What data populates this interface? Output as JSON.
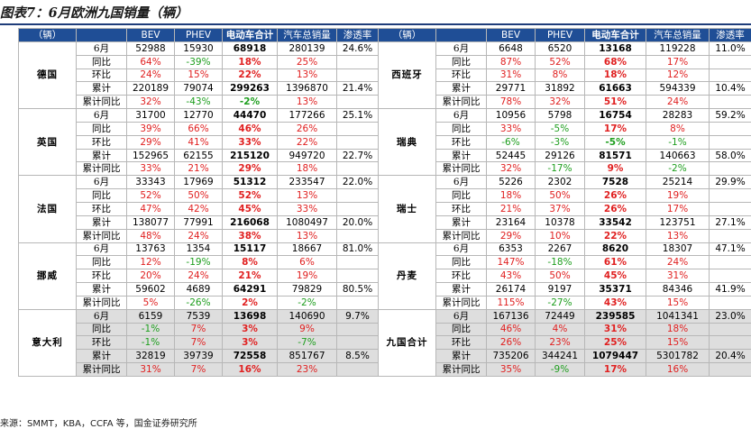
{
  "title": "图表7：6月欧洲九国销量（辆）",
  "source": "来源：SMMT，KBA，CCFA 等，国金证券研究所",
  "headers": [
    "（辆）",
    "",
    "BEV",
    "PHEV",
    "电动车合计",
    "汽车总销量",
    "渗透率"
  ],
  "colors": {
    "header_bg": "#1f4e96",
    "negative": "#e02020",
    "positive": "#1e9e1e",
    "alt_row": "#dedede"
  },
  "left": [
    {
      "name": "德国",
      "rows": [
        {
          "metric": "6月",
          "bev": "52988",
          "phev": "15930",
          "ev": "68918",
          "total": "280139",
          "pen": "24.6%"
        },
        {
          "metric": "同比",
          "bev": "64%",
          "phev": "-39%",
          "ev": "18%",
          "total": "25%",
          "pen": ""
        },
        {
          "metric": "环比",
          "bev": "24%",
          "phev": "15%",
          "ev": "22%",
          "total": "13%",
          "pen": ""
        },
        {
          "metric": "累计",
          "bev": "220189",
          "phev": "79074",
          "ev": "299263",
          "total": "1396870",
          "pen": "21.4%"
        },
        {
          "metric": "累计同比",
          "bev": "32%",
          "phev": "-43%",
          "ev": "-2%",
          "total": "13%",
          "pen": ""
        }
      ]
    },
    {
      "name": "英国",
      "rows": [
        {
          "metric": "6月",
          "bev": "31700",
          "phev": "12770",
          "ev": "44470",
          "total": "177266",
          "pen": "25.1%"
        },
        {
          "metric": "同比",
          "bev": "39%",
          "phev": "66%",
          "ev": "46%",
          "total": "26%",
          "pen": ""
        },
        {
          "metric": "环比",
          "bev": "29%",
          "phev": "41%",
          "ev": "33%",
          "total": "22%",
          "pen": ""
        },
        {
          "metric": "累计",
          "bev": "152965",
          "phev": "62155",
          "ev": "215120",
          "total": "949720",
          "pen": "22.7%"
        },
        {
          "metric": "累计同比",
          "bev": "33%",
          "phev": "21%",
          "ev": "29%",
          "total": "18%",
          "pen": ""
        }
      ]
    },
    {
      "name": "法国",
      "rows": [
        {
          "metric": "6月",
          "bev": "33343",
          "phev": "17969",
          "ev": "51312",
          "total": "233547",
          "pen": "22.0%"
        },
        {
          "metric": "同比",
          "bev": "52%",
          "phev": "50%",
          "ev": "52%",
          "total": "13%",
          "pen": ""
        },
        {
          "metric": "环比",
          "bev": "47%",
          "phev": "42%",
          "ev": "45%",
          "total": "33%",
          "pen": ""
        },
        {
          "metric": "累计",
          "bev": "138077",
          "phev": "77991",
          "ev": "216068",
          "total": "1080497",
          "pen": "20.0%"
        },
        {
          "metric": "累计同比",
          "bev": "48%",
          "phev": "24%",
          "ev": "38%",
          "total": "13%",
          "pen": ""
        }
      ]
    },
    {
      "name": "挪威",
      "rows": [
        {
          "metric": "6月",
          "bev": "13763",
          "phev": "1354",
          "ev": "15117",
          "total": "18667",
          "pen": "81.0%"
        },
        {
          "metric": "同比",
          "bev": "12%",
          "phev": "-19%",
          "ev": "8%",
          "total": "6%",
          "pen": ""
        },
        {
          "metric": "环比",
          "bev": "20%",
          "phev": "24%",
          "ev": "21%",
          "total": "19%",
          "pen": ""
        },
        {
          "metric": "累计",
          "bev": "59602",
          "phev": "4689",
          "ev": "64291",
          "total": "79829",
          "pen": "80.5%"
        },
        {
          "metric": "累计同比",
          "bev": "5%",
          "phev": "-26%",
          "ev": "2%",
          "total": "-2%",
          "pen": ""
        }
      ]
    },
    {
      "name": "意大利",
      "rows": [
        {
          "metric": "6月",
          "bev": "6159",
          "phev": "7539",
          "ev": "13698",
          "total": "140690",
          "pen": "9.7%"
        },
        {
          "metric": "同比",
          "bev": "-1%",
          "phev": "7%",
          "ev": "3%",
          "total": "9%",
          "pen": ""
        },
        {
          "metric": "环比",
          "bev": "-1%",
          "phev": "7%",
          "ev": "3%",
          "total": "-7%",
          "pen": ""
        },
        {
          "metric": "累计",
          "bev": "32819",
          "phev": "39739",
          "ev": "72558",
          "total": "851767",
          "pen": "8.5%"
        },
        {
          "metric": "累计同比",
          "bev": "31%",
          "phev": "7%",
          "ev": "16%",
          "total": "23%",
          "pen": ""
        }
      ]
    }
  ],
  "right": [
    {
      "name": "西班牙",
      "rows": [
        {
          "metric": "6月",
          "bev": "6648",
          "phev": "6520",
          "ev": "13168",
          "total": "119228",
          "pen": "11.0%"
        },
        {
          "metric": "同比",
          "bev": "87%",
          "phev": "52%",
          "ev": "68%",
          "total": "17%",
          "pen": ""
        },
        {
          "metric": "环比",
          "bev": "31%",
          "phev": "8%",
          "ev": "18%",
          "total": "12%",
          "pen": ""
        },
        {
          "metric": "累计",
          "bev": "29771",
          "phev": "31892",
          "ev": "61663",
          "total": "594339",
          "pen": "10.4%"
        },
        {
          "metric": "累计同比",
          "bev": "78%",
          "phev": "32%",
          "ev": "51%",
          "total": "24%",
          "pen": ""
        }
      ]
    },
    {
      "name": "瑞典",
      "rows": [
        {
          "metric": "6月",
          "bev": "10956",
          "phev": "5798",
          "ev": "16754",
          "total": "28283",
          "pen": "59.2%"
        },
        {
          "metric": "同比",
          "bev": "33%",
          "phev": "-5%",
          "ev": "17%",
          "total": "8%",
          "pen": ""
        },
        {
          "metric": "环比",
          "bev": "-6%",
          "phev": "-3%",
          "ev": "-5%",
          "total": "-1%",
          "pen": ""
        },
        {
          "metric": "累计",
          "bev": "52445",
          "phev": "29126",
          "ev": "81571",
          "total": "140663",
          "pen": "58.0%"
        },
        {
          "metric": "累计同比",
          "bev": "32%",
          "phev": "-17%",
          "ev": "9%",
          "total": "-2%",
          "pen": ""
        }
      ]
    },
    {
      "name": "瑞士",
      "rows": [
        {
          "metric": "6月",
          "bev": "5226",
          "phev": "2302",
          "ev": "7528",
          "total": "25214",
          "pen": "29.9%"
        },
        {
          "metric": "同比",
          "bev": "18%",
          "phev": "50%",
          "ev": "26%",
          "total": "19%",
          "pen": ""
        },
        {
          "metric": "环比",
          "bev": "21%",
          "phev": "37%",
          "ev": "26%",
          "total": "17%",
          "pen": ""
        },
        {
          "metric": "累计",
          "bev": "23164",
          "phev": "10378",
          "ev": "33542",
          "total": "123751",
          "pen": "27.1%"
        },
        {
          "metric": "累计同比",
          "bev": "29%",
          "phev": "10%",
          "ev": "22%",
          "total": "13%",
          "pen": ""
        }
      ]
    },
    {
      "name": "丹麦",
      "rows": [
        {
          "metric": "6月",
          "bev": "6353",
          "phev": "2267",
          "ev": "8620",
          "total": "18307",
          "pen": "47.1%"
        },
        {
          "metric": "同比",
          "bev": "147%",
          "phev": "-18%",
          "ev": "61%",
          "total": "24%",
          "pen": ""
        },
        {
          "metric": "环比",
          "bev": "43%",
          "phev": "50%",
          "ev": "45%",
          "total": "31%",
          "pen": ""
        },
        {
          "metric": "累计",
          "bev": "26174",
          "phev": "9197",
          "ev": "35371",
          "total": "84346",
          "pen": "41.9%"
        },
        {
          "metric": "累计同比",
          "bev": "115%",
          "phev": "-27%",
          "ev": "43%",
          "total": "15%",
          "pen": ""
        }
      ]
    },
    {
      "name": "九国合计",
      "rows": [
        {
          "metric": "6月",
          "bev": "167136",
          "phev": "72449",
          "ev": "239585",
          "total": "1041341",
          "pen": "23.0%"
        },
        {
          "metric": "同比",
          "bev": "46%",
          "phev": "4%",
          "ev": "31%",
          "total": "18%",
          "pen": ""
        },
        {
          "metric": "环比",
          "bev": "26%",
          "phev": "23%",
          "ev": "25%",
          "total": "15%",
          "pen": ""
        },
        {
          "metric": "累计",
          "bev": "735206",
          "phev": "344241",
          "ev": "1079447",
          "total": "5301782",
          "pen": "20.4%"
        },
        {
          "metric": "累计同比",
          "bev": "35%",
          "phev": "-9%",
          "ev": "17%",
          "total": "16%",
          "pen": ""
        }
      ]
    }
  ]
}
